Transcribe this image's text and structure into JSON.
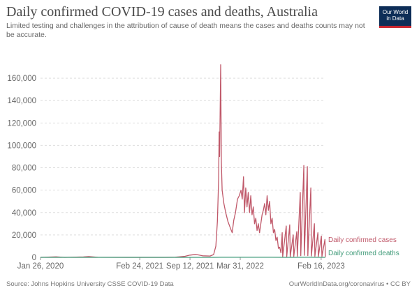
{
  "header": {
    "title": "Daily confirmed COVID-19 cases and deaths, Australia",
    "subtitle": "Limited testing and challenges in the attribution of cause of death means the cases and deaths counts may not be accurate.",
    "logo_line1": "Our World",
    "logo_line2": "in Data"
  },
  "footer": {
    "source": "Source: Johns Hopkins University CSSE COVID-19 Data",
    "credit": "OurWorldInData.org/coronavirus • CC BY"
  },
  "colors": {
    "cases": "#c0596a",
    "deaths": "#3f9a78",
    "grid": "#dddddd",
    "axis": "#999999"
  },
  "chart_data": {
    "type": "line",
    "x_tick_labels": [
      "Jan 26, 2020",
      "Feb 24, 2021",
      "Sep 12, 2021",
      "Mar 31, 2022",
      "Feb 16, 2023"
    ],
    "y_tick_labels": [
      "0",
      "20,000",
      "40,000",
      "60,000",
      "80,000",
      "100,000",
      "120,000",
      "140,000",
      "160,000"
    ],
    "x_range": [
      "2020-01-26",
      "2023-03-05"
    ],
    "ylim": [
      0,
      175000
    ],
    "grid": "horizontal dashed",
    "series": [
      {
        "name": "Daily confirmed cases",
        "color": "#c0596a",
        "points": [
          [
            "2020-01-26",
            0
          ],
          [
            "2020-03-28",
            450
          ],
          [
            "2020-05-01",
            30
          ],
          [
            "2020-07-15",
            350
          ],
          [
            "2020-08-05",
            700
          ],
          [
            "2020-09-10",
            60
          ],
          [
            "2021-01-01",
            20
          ],
          [
            "2021-02-24",
            10
          ],
          [
            "2021-06-01",
            20
          ],
          [
            "2021-07-15",
            150
          ],
          [
            "2021-08-20",
            800
          ],
          [
            "2021-09-12",
            2000
          ],
          [
            "2021-10-05",
            2600
          ],
          [
            "2021-11-01",
            1400
          ],
          [
            "2021-12-01",
            1200
          ],
          [
            "2021-12-15",
            2500
          ],
          [
            "2021-12-24",
            10000
          ],
          [
            "2021-12-30",
            32000
          ],
          [
            "2022-01-04",
            70000
          ],
          [
            "2022-01-06",
            112000
          ],
          [
            "2022-01-08",
            90000
          ],
          [
            "2022-01-12",
            172000
          ],
          [
            "2022-01-15",
            85000
          ],
          [
            "2022-01-18",
            60000
          ],
          [
            "2022-01-25",
            48000
          ],
          [
            "2022-02-01",
            40000
          ],
          [
            "2022-02-10",
            32000
          ],
          [
            "2022-02-20",
            26000
          ],
          [
            "2022-02-27",
            22000
          ],
          [
            "2022-03-05",
            33000
          ],
          [
            "2022-03-12",
            40000
          ],
          [
            "2022-03-20",
            52000
          ],
          [
            "2022-03-27",
            55000
          ],
          [
            "2022-04-03",
            60000
          ],
          [
            "2022-04-08",
            52000
          ],
          [
            "2022-04-13",
            72000
          ],
          [
            "2022-04-17",
            40000
          ],
          [
            "2022-04-22",
            62000
          ],
          [
            "2022-04-27",
            45000
          ],
          [
            "2022-05-02",
            58000
          ],
          [
            "2022-05-07",
            40000
          ],
          [
            "2022-05-12",
            55000
          ],
          [
            "2022-05-17",
            38000
          ],
          [
            "2022-05-22",
            45000
          ],
          [
            "2022-05-27",
            30000
          ],
          [
            "2022-06-01",
            35000
          ],
          [
            "2022-06-06",
            24000
          ],
          [
            "2022-06-11",
            30000
          ],
          [
            "2022-06-16",
            22000
          ],
          [
            "2022-06-21",
            30000
          ],
          [
            "2022-06-26",
            38000
          ],
          [
            "2022-07-01",
            42000
          ],
          [
            "2022-07-06",
            48000
          ],
          [
            "2022-07-11",
            38000
          ],
          [
            "2022-07-16",
            55000
          ],
          [
            "2022-07-21",
            42000
          ],
          [
            "2022-07-26",
            50000
          ],
          [
            "2022-07-31",
            30000
          ],
          [
            "2022-08-05",
            35000
          ],
          [
            "2022-08-10",
            22000
          ],
          [
            "2022-08-15",
            25000
          ],
          [
            "2022-08-20",
            15000
          ],
          [
            "2022-08-25",
            18000
          ],
          [
            "2022-08-30",
            8000
          ],
          [
            "2022-09-04",
            9000
          ],
          [
            "2022-09-09",
            4000
          ],
          [
            "2022-09-14",
            22000
          ],
          [
            "2022-09-16",
            500
          ],
          [
            "2022-09-30",
            28000
          ],
          [
            "2022-10-02",
            700
          ],
          [
            "2022-10-14",
            29000
          ],
          [
            "2022-10-16",
            600
          ],
          [
            "2022-10-28",
            20000
          ],
          [
            "2022-10-30",
            800
          ],
          [
            "2022-11-11",
            23000
          ],
          [
            "2022-11-13",
            1000
          ],
          [
            "2022-11-25",
            58000
          ],
          [
            "2022-11-27",
            1500
          ],
          [
            "2022-12-09",
            82000
          ],
          [
            "2022-12-11",
            1800
          ],
          [
            "2022-12-23",
            81000
          ],
          [
            "2022-12-25",
            1500
          ],
          [
            "2023-01-06",
            62000
          ],
          [
            "2023-01-08",
            1200
          ],
          [
            "2023-01-20",
            30000
          ],
          [
            "2023-01-22",
            900
          ],
          [
            "2023-02-03",
            22000
          ],
          [
            "2023-02-05",
            800
          ],
          [
            "2023-02-17",
            19000
          ],
          [
            "2023-02-19",
            700
          ],
          [
            "2023-03-03",
            16000
          ],
          [
            "2023-03-05",
            500
          ]
        ]
      },
      {
        "name": "Daily confirmed deaths",
        "color": "#3f9a78",
        "points": [
          [
            "2020-01-26",
            0
          ],
          [
            "2021-12-15",
            5
          ],
          [
            "2022-01-15",
            90
          ],
          [
            "2022-02-01",
            60
          ],
          [
            "2022-06-01",
            50
          ],
          [
            "2022-08-01",
            90
          ],
          [
            "2022-10-01",
            30
          ],
          [
            "2023-01-01",
            60
          ],
          [
            "2023-03-05",
            25
          ]
        ]
      }
    ]
  }
}
